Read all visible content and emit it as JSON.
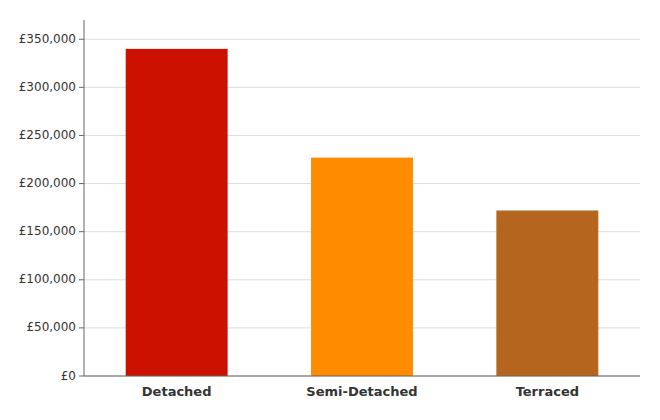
{
  "chart_data": {
    "type": "bar",
    "categories": [
      "Detached",
      "Semi-Detached",
      "Terraced"
    ],
    "values": [
      340000,
      227000,
      172000
    ],
    "colors": [
      "#cc1100",
      "#ff8c00",
      "#b5651d"
    ],
    "ylim": [
      0,
      370000
    ],
    "yticks": [
      {
        "value": 0,
        "label": "£0"
      },
      {
        "value": 50000,
        "label": "£50,000"
      },
      {
        "value": 100000,
        "label": "£100,000"
      },
      {
        "value": 150000,
        "label": "£150,000"
      },
      {
        "value": 200000,
        "label": "£200,000"
      },
      {
        "value": 250000,
        "label": "£250,000"
      },
      {
        "value": 300000,
        "label": "£300,000"
      },
      {
        "value": 350000,
        "label": "£350,000"
      }
    ],
    "grid": true
  }
}
